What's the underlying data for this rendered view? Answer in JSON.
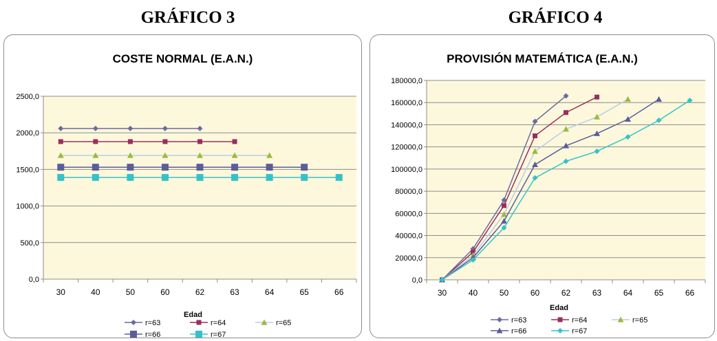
{
  "headers": {
    "left": "GRÁFICO 3",
    "right": "GRÁFICO 4"
  },
  "series_colors": {
    "r=63": "#6b6b9f",
    "r=64": "#9b2d5e",
    "r=65": "#9bbb3d",
    "r=66": "#5a5d9a",
    "r=67": "#34c2c8",
    "r=65_line_gf4": "#b4c8e8"
  },
  "plot_background": "#fdf8dc",
  "chart_data": [
    {
      "type": "line",
      "title": "COSTE NORMAL (E.A.N.)",
      "xlabel": "Edad",
      "ylabel": "",
      "categories": [
        "30",
        "40",
        "50",
        "60",
        "62",
        "63",
        "64",
        "65",
        "66"
      ],
      "ylim": [
        0,
        2500
      ],
      "yticks": [
        "0,0",
        "500,0",
        "1000,0",
        "1500,0",
        "2000,0",
        "2500,0"
      ],
      "grid": true,
      "legend": "bottom",
      "series": [
        {
          "name": "r=63",
          "marker": "diamond",
          "values": [
            2060,
            2060,
            2060,
            2060,
            2060,
            null,
            null,
            null,
            null
          ]
        },
        {
          "name": "r=64",
          "marker": "square",
          "values": [
            1880,
            1880,
            1880,
            1880,
            1880,
            1880,
            null,
            null,
            null
          ]
        },
        {
          "name": "r=65",
          "marker": "triangle",
          "values": [
            1690,
            1690,
            1690,
            1690,
            1690,
            1690,
            1690,
            null,
            null
          ]
        },
        {
          "name": "r=66",
          "marker": "square-big",
          "values": [
            1530,
            1530,
            1530,
            1530,
            1530,
            1530,
            1530,
            1530,
            null
          ]
        },
        {
          "name": "r=67",
          "marker": "square-big",
          "values": [
            1390,
            1390,
            1390,
            1390,
            1390,
            1390,
            1390,
            1390,
            1390
          ]
        }
      ]
    },
    {
      "type": "line",
      "title": "PROVISIÓN MATEMÁTICA (E.A.N.)",
      "xlabel": "Edad",
      "ylabel": "",
      "categories": [
        "30",
        "40",
        "50",
        "60",
        "62",
        "63",
        "64",
        "65",
        "66"
      ],
      "ylim": [
        0,
        180000
      ],
      "yticks": [
        "0,0",
        "20000,0",
        "40000,0",
        "60000,0",
        "80000,0",
        "100000,0",
        "120000,0",
        "140000,0",
        "160000,0",
        "180000,0"
      ],
      "grid": true,
      "legend": "bottom",
      "series": [
        {
          "name": "r=63",
          "marker": "diamond",
          "values": [
            0,
            28000,
            72000,
            143000,
            166000,
            null,
            null,
            null,
            null
          ]
        },
        {
          "name": "r=64",
          "marker": "square",
          "values": [
            0,
            25000,
            67000,
            130000,
            151000,
            165000,
            null,
            null,
            null
          ]
        },
        {
          "name": "r=65",
          "marker": "triangle",
          "values": [
            0,
            22000,
            59000,
            116000,
            136000,
            147000,
            163000,
            null,
            null
          ]
        },
        {
          "name": "r=66",
          "marker": "triangle",
          "values": [
            0,
            20000,
            53000,
            104000,
            121000,
            132000,
            145000,
            163000,
            null
          ]
        },
        {
          "name": "r=67",
          "marker": "diamond",
          "values": [
            0,
            18000,
            47000,
            92000,
            107000,
            116000,
            129000,
            144000,
            162000
          ]
        }
      ]
    }
  ]
}
